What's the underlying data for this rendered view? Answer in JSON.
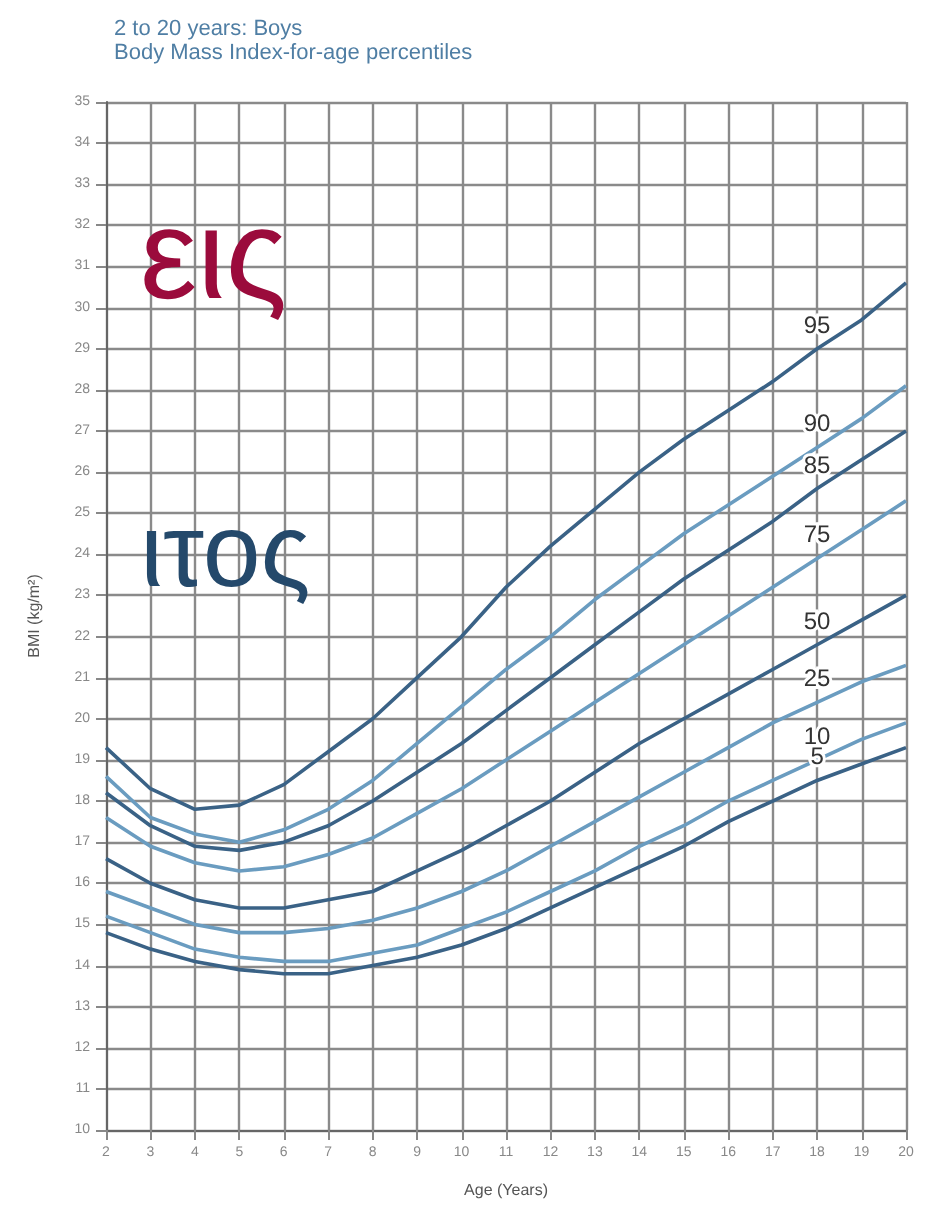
{
  "chart_data": {
    "type": "line",
    "title": "2 to 20 years: Boys",
    "subtitle": "Body Mass Index-for-age percentiles",
    "xlabel": "Age (Years)",
    "ylabel": "BMI (kg/m²)",
    "x": [
      2,
      3,
      4,
      5,
      6,
      7,
      8,
      9,
      10,
      11,
      12,
      13,
      14,
      15,
      16,
      17,
      18,
      19,
      20
    ],
    "xlim": [
      2,
      20
    ],
    "xticks": [
      2,
      3,
      4,
      5,
      6,
      7,
      8,
      9,
      10,
      11,
      12,
      13,
      14,
      15,
      16,
      17,
      18,
      19,
      20
    ],
    "ylim": [
      10,
      35
    ],
    "yticks": [
      10,
      11,
      12,
      13,
      14,
      15,
      16,
      17,
      18,
      19,
      20,
      21,
      22,
      23,
      24,
      25,
      26,
      27,
      28,
      29,
      30,
      31,
      32,
      33,
      34,
      35
    ],
    "grid": true,
    "legend": false,
    "marker": "none",
    "line_style": "solid",
    "annotations": [
      "εις",
      "ιτος"
    ],
    "series": [
      {
        "name": "95",
        "color": "#3a6286",
        "values": [
          19.3,
          18.3,
          17.8,
          17.9,
          18.4,
          19.2,
          20.0,
          21.0,
          22.0,
          23.2,
          24.2,
          25.1,
          26.0,
          26.8,
          27.5,
          28.2,
          29.0,
          29.7,
          30.6
        ]
      },
      {
        "name": "90",
        "color": "#6a9cc0",
        "values": [
          18.6,
          17.6,
          17.2,
          17.0,
          17.3,
          17.8,
          18.5,
          19.4,
          20.3,
          21.2,
          22.0,
          22.9,
          23.7,
          24.5,
          25.2,
          25.9,
          26.6,
          27.3,
          28.1
        ]
      },
      {
        "name": "85",
        "color": "#3a6286",
        "values": [
          18.2,
          17.4,
          16.9,
          16.8,
          17.0,
          17.4,
          18.0,
          18.7,
          19.4,
          20.2,
          21.0,
          21.8,
          22.6,
          23.4,
          24.1,
          24.8,
          25.6,
          26.3,
          27.0
        ]
      },
      {
        "name": "75",
        "color": "#6a9cc0",
        "values": [
          17.6,
          16.9,
          16.5,
          16.3,
          16.4,
          16.7,
          17.1,
          17.7,
          18.3,
          19.0,
          19.7,
          20.4,
          21.1,
          21.8,
          22.5,
          23.2,
          23.9,
          24.6,
          25.3
        ]
      },
      {
        "name": "50",
        "color": "#3a6286",
        "values": [
          16.6,
          16.0,
          15.6,
          15.4,
          15.4,
          15.6,
          15.8,
          16.3,
          16.8,
          17.4,
          18.0,
          18.7,
          19.4,
          20.0,
          20.6,
          21.2,
          21.8,
          22.4,
          23.0
        ]
      },
      {
        "name": "25",
        "color": "#6a9cc0",
        "values": [
          15.8,
          15.4,
          15.0,
          14.8,
          14.8,
          14.9,
          15.1,
          15.4,
          15.8,
          16.3,
          16.9,
          17.5,
          18.1,
          18.7,
          19.3,
          19.9,
          20.4,
          20.9,
          21.3
        ]
      },
      {
        "name": "10",
        "color": "#6a9cc0",
        "values": [
          15.2,
          14.8,
          14.4,
          14.2,
          14.1,
          14.1,
          14.3,
          14.5,
          14.9,
          15.3,
          15.8,
          16.3,
          16.9,
          17.4,
          18.0,
          18.5,
          19.0,
          19.5,
          19.9
        ]
      },
      {
        "name": "5",
        "color": "#3a6286",
        "values": [
          14.8,
          14.4,
          14.1,
          13.9,
          13.8,
          13.8,
          14.0,
          14.2,
          14.5,
          14.9,
          15.4,
          15.9,
          16.4,
          16.9,
          17.5,
          18.0,
          18.5,
          18.9,
          19.3
        ]
      }
    ]
  }
}
